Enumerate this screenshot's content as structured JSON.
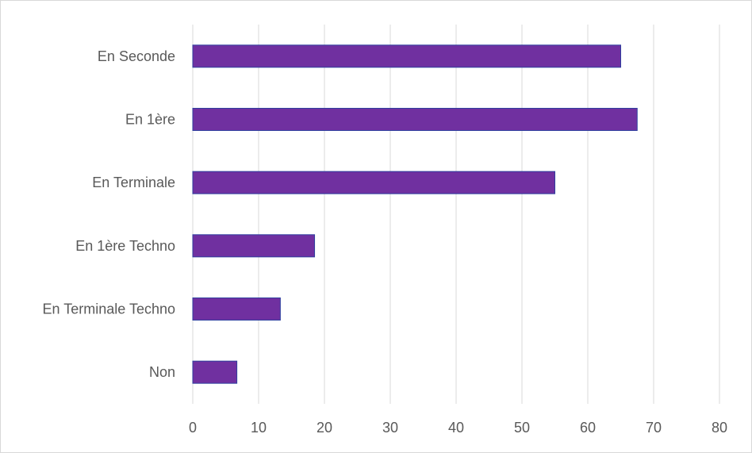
{
  "chart_data": {
    "type": "bar",
    "orientation": "horizontal",
    "categories": [
      "En Seconde",
      "En 1ère",
      "En Terminale",
      "En 1ère Techno",
      "En Terminale Techno",
      "Non"
    ],
    "values": [
      65,
      67.5,
      55,
      18.5,
      13.3,
      6.7
    ],
    "xlim": [
      0,
      80
    ],
    "xticks": [
      "0",
      "10",
      "20",
      "30",
      "40",
      "50",
      "60",
      "70",
      "80"
    ],
    "grid": true,
    "colors": {
      "bar": "#7030A0",
      "bar_border": "#2F3F9F",
      "grid": "#d9d9d9",
      "text": "#595959"
    }
  }
}
